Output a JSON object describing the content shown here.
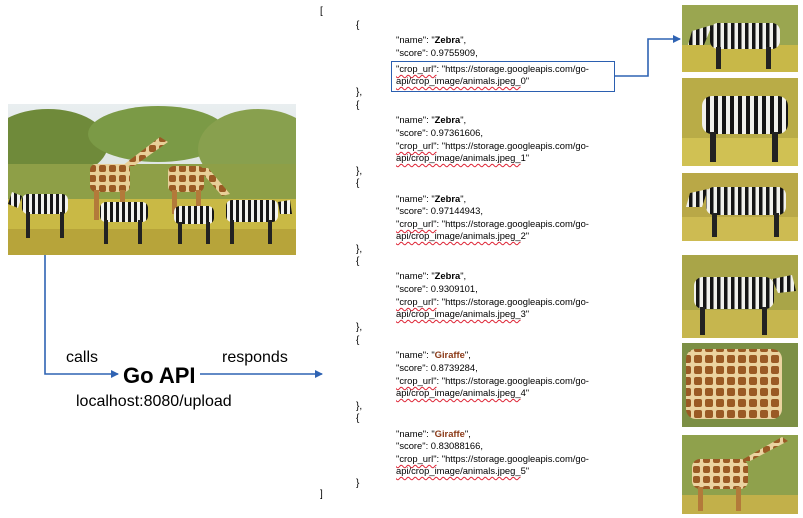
{
  "flow": {
    "calls_label": "calls",
    "responds_label": "responds",
    "api_title": "Go API",
    "api_endpoint": "localhost:8080/upload"
  },
  "json": {
    "open_bracket": "[",
    "close_bracket": "]",
    "open_brace": "{",
    "close_brace": "}",
    "close_brace_comma": "},",
    "name_prefix": "\"name\": \"",
    "name_suffix": "\",",
    "score_prefix": "\"score\": ",
    "crop_key": "\"crop_url\"",
    "crop_prefix": ": \"https://storage.googleapis.com/go-",
    "crop_line2": "api/crop_image/animals.jpeg_",
    "items": [
      {
        "name": "Zebra",
        "score": "0.9755909,",
        "suffix": "0\""
      },
      {
        "name": "Zebra",
        "score": "0.97361606,",
        "suffix": "1\""
      },
      {
        "name": "Zebra",
        "score": "0.97144943,",
        "suffix": "2\""
      },
      {
        "name": "Zebra",
        "score": "0.9309101,",
        "suffix": "3\""
      },
      {
        "name": "Giraffe",
        "score": "0.8739284,",
        "suffix": "4\""
      },
      {
        "name": "Giraffe",
        "score": "0.83088166,",
        "suffix": "5\""
      }
    ]
  },
  "colors": {
    "arrow": "#2f63b3",
    "giraffe_name": "#8b3a17",
    "highlight_border": "#2b5fb0"
  },
  "images": {
    "source": "safari photo with two giraffes and four zebras",
    "crops": [
      "zebra crop 0",
      "zebra crop 1",
      "zebra crop 2",
      "zebra crop 3",
      "giraffe crop 4",
      "giraffe crop 5"
    ]
  }
}
